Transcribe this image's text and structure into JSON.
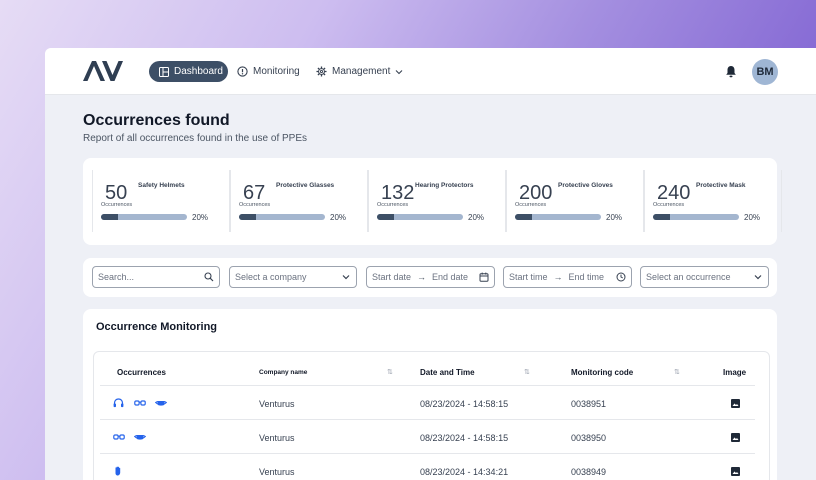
{
  "header": {
    "logo": "AV",
    "nav": {
      "dashboard": "Dashboard",
      "monitoring": "Monitoring",
      "management": "Management"
    },
    "avatar_initials": "BM"
  },
  "page": {
    "title": "Occurrences found",
    "subtitle": "Report of all occurrences found in the use of PPEs"
  },
  "stats": [
    {
      "count": "50",
      "name": "Safety Helmets",
      "sub": "Occurrences",
      "percent": "20%",
      "progress": 0.2
    },
    {
      "count": "67",
      "name": "Protective Glasses",
      "sub": "Occurrences",
      "percent": "20%",
      "progress": 0.2
    },
    {
      "count": "132",
      "name": "Hearing Protectors",
      "sub": "Occurrences",
      "percent": "20%",
      "progress": 0.2
    },
    {
      "count": "200",
      "name": "Protective Gloves",
      "sub": "Occurrences",
      "percent": "20%",
      "progress": 0.2
    },
    {
      "count": "240",
      "name": "Protective Mask",
      "sub": "Occurrences",
      "percent": "20%",
      "progress": 0.2
    }
  ],
  "filters": {
    "search_placeholder": "Search...",
    "company_placeholder": "Select a company",
    "start_date": "Start date",
    "end_date": "End date",
    "start_time": "Start time",
    "end_time": "End time",
    "occurrence_placeholder": "Select an occurrence"
  },
  "table": {
    "title": "Occurrence Monitoring",
    "headers": {
      "occurrences": "Occurrences",
      "company": "Company name",
      "datetime": "Date and Time",
      "code": "Monitoring code",
      "image": "Image"
    },
    "rows": [
      {
        "icons": [
          "headphones-icon",
          "glasses-icon",
          "mask-icon"
        ],
        "company": "Venturus",
        "datetime": "08/23/2024 - 14:58:15",
        "code": "0038951"
      },
      {
        "icons": [
          "glasses-icon",
          "mask-icon"
        ],
        "company": "Venturus",
        "datetime": "08/23/2024 - 14:58:15",
        "code": "0038950"
      },
      {
        "icons": [
          "glove-icon"
        ],
        "company": "Venturus",
        "datetime": "08/23/2024 - 14:34:21",
        "code": "0038949"
      }
    ]
  },
  "colors": {
    "accent": "#3d4f66",
    "bar_track": "#a4b6cf",
    "icon_blue": "#2563eb"
  }
}
